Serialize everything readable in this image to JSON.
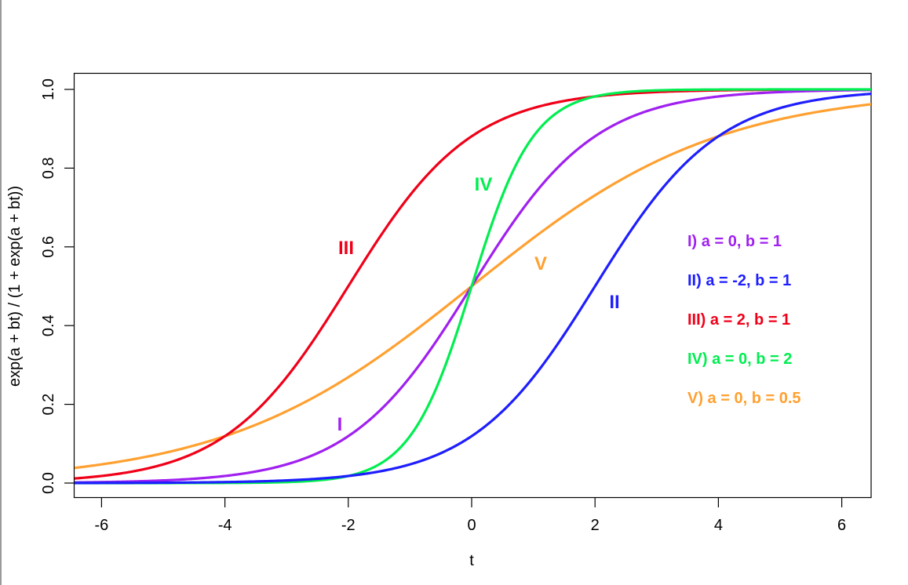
{
  "chart_data": {
    "type": "line",
    "title": "",
    "xlabel": "t",
    "ylabel": "exp(a + bt) / (1 + exp(a + bt))",
    "xlim": [
      -6.5,
      6.5
    ],
    "ylim": [
      -0.036,
      1.04
    ],
    "x_ticks": [
      "-6",
      "-4",
      "-2",
      "0",
      "2",
      "4",
      "6"
    ],
    "y_ticks": [
      "0.0",
      "0.2",
      "0.4",
      "0.6",
      "0.8",
      "1.0"
    ],
    "grid": false,
    "legend_position": "right-center (text annotations)",
    "series": [
      {
        "id": "I",
        "name": "I) a = 0, b = 1",
        "a": 0,
        "b": 1,
        "color": "#A020F0",
        "label": "I",
        "label_at": [
          -2.15,
          0.15
        ],
        "x": [
          -6.5,
          -6,
          -5,
          -4,
          -3,
          -2,
          -1,
          0,
          1,
          2,
          3,
          4,
          5,
          6,
          6.5
        ],
        "values": [
          0.0015,
          0.0025,
          0.0067,
          0.018,
          0.047,
          0.119,
          0.269,
          0.5,
          0.731,
          0.881,
          0.953,
          0.982,
          0.993,
          0.9975,
          0.9985
        ]
      },
      {
        "id": "II",
        "name": "II) a = -2, b = 1",
        "a": -2,
        "b": 1,
        "color": "#1E1EFF",
        "label": "II",
        "label_at": [
          2.3,
          0.46
        ],
        "x": [
          -6.5,
          -6,
          -4,
          -2,
          -1,
          0,
          1,
          2,
          3,
          4,
          5,
          6,
          6.5
        ],
        "values": [
          0.0002,
          0.0003,
          0.0025,
          0.018,
          0.047,
          0.119,
          0.269,
          0.5,
          0.731,
          0.881,
          0.953,
          0.982,
          0.989
        ]
      },
      {
        "id": "III",
        "name": "III) a = 2, b = 1",
        "a": 2,
        "b": 1,
        "color": "#F00018",
        "label": "III",
        "label_at": [
          -2.05,
          0.6
        ],
        "x": [
          -6.5,
          -6,
          -5,
          -4,
          -3,
          -2,
          -1,
          0,
          1,
          2,
          4,
          6.5
        ],
        "values": [
          0.011,
          0.018,
          0.047,
          0.119,
          0.269,
          0.5,
          0.731,
          0.881,
          0.953,
          0.982,
          0.9975,
          0.9999
        ]
      },
      {
        "id": "IV",
        "name": "IV) a = 0, b = 2",
        "a": 0,
        "b": 2,
        "color": "#00EE50",
        "label": "IV",
        "label_at": [
          0.2,
          0.76
        ],
        "x": [
          -6.5,
          -3,
          -2,
          -1,
          -0.5,
          0,
          0.5,
          1,
          2,
          3,
          6.5
        ],
        "values": [
          0.0,
          0.0025,
          0.018,
          0.119,
          0.269,
          0.5,
          0.731,
          0.881,
          0.982,
          0.9975,
          1.0
        ]
      },
      {
        "id": "V",
        "name": "V) a = 0, b = 0.5",
        "a": 0,
        "b": 0.5,
        "color": "#FFA030",
        "label": "V",
        "label_at": [
          1.1,
          0.56
        ],
        "x": [
          -6.5,
          -6,
          -4,
          -2,
          0,
          2,
          4,
          6,
          6.5
        ],
        "values": [
          0.037,
          0.047,
          0.119,
          0.269,
          0.5,
          0.731,
          0.881,
          0.953,
          0.963
        ]
      }
    ]
  },
  "legend": {
    "items": [
      {
        "text": "I) a = 0, b = 1",
        "color": "#A020F0"
      },
      {
        "text": "II) a = -2, b = 1",
        "color": "#1E1EFF"
      },
      {
        "text": "III) a = 2, b = 1",
        "color": "#F00018"
      },
      {
        "text": "IV) a = 0, b = 2",
        "color": "#00EE50"
      },
      {
        "text": "V) a = 0, b = 0.5",
        "color": "#FFA030"
      }
    ]
  },
  "curve_labels": [
    {
      "text": "I",
      "color": "#A020F0"
    },
    {
      "text": "II",
      "color": "#1E1EFF"
    },
    {
      "text": "III",
      "color": "#F00018"
    },
    {
      "text": "IV",
      "color": "#00EE50"
    },
    {
      "text": "V",
      "color": "#FFA030"
    }
  ],
  "axes": {
    "x_title": "t",
    "y_title": "exp(a + bt) / (1 + exp(a + bt))",
    "x_ticks": [
      "-6",
      "-4",
      "-2",
      "0",
      "2",
      "4",
      "6"
    ],
    "y_ticks": [
      "0.0",
      "0.2",
      "0.4",
      "0.6",
      "0.8",
      "1.0"
    ]
  }
}
